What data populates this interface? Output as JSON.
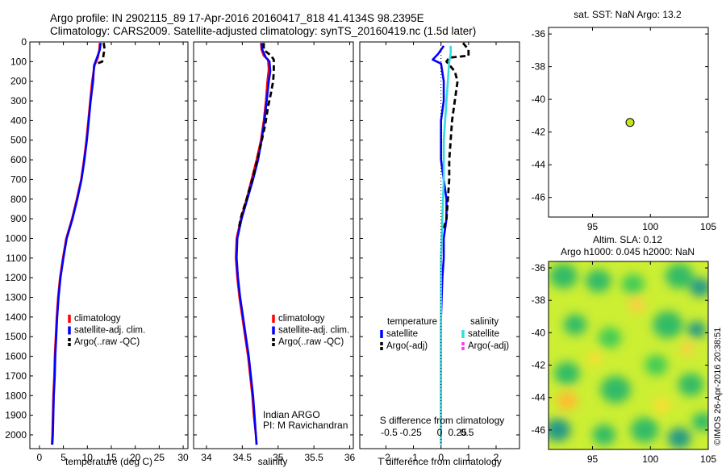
{
  "header": {
    "title_line1": "Argo profile: IN 2902115_89 17-Apr-2016 20160417_818 41.4134S 98.2395E",
    "title_line2": "Climatology: CARS2009. Satellite-adjusted climatology: synTS_20160419.nc (1.5d later)"
  },
  "colors": {
    "climatology": "#ff0000",
    "satellite": "#0000ff",
    "argo": "#000000",
    "sal_satellite": "#33dddd",
    "sal_argo": "#ff33ff",
    "float_marker": "#bfe61a"
  },
  "credit": {
    "institution": "Indian ARGO",
    "pi": "PI: M Ravichandran"
  },
  "stamp": "©IMOS 26-Apr-2016 20:38:51",
  "chart_data": [
    {
      "id": "temperature",
      "type": "line",
      "xlabel": "temperature (deg C)",
      "ylabel": "",
      "xlim": [
        -2,
        31
      ],
      "ylim": [
        2070,
        0
      ],
      "xticks": [
        0,
        5,
        10,
        15,
        20,
        25,
        30
      ],
      "yticks": [
        0,
        100,
        200,
        300,
        400,
        500,
        600,
        700,
        800,
        900,
        1000,
        1100,
        1200,
        1300,
        1400,
        1500,
        1600,
        1700,
        1800,
        1900,
        2000
      ],
      "legend": [
        "climatology",
        "satellite-adj. clim.",
        "Argo(..raw -QC)"
      ],
      "legend_position": "bottom-right",
      "series": [
        {
          "name": "climatology",
          "style": "solid",
          "points": [
            [
              12.6,
              5
            ],
            [
              12.5,
              40
            ],
            [
              12.2,
              80
            ],
            [
              11.5,
              120
            ],
            [
              11.0,
              200
            ],
            [
              10.6,
              300
            ],
            [
              10.2,
              400
            ],
            [
              9.8,
              500
            ],
            [
              9.3,
              600
            ],
            [
              8.7,
              700
            ],
            [
              7.8,
              800
            ],
            [
              6.8,
              900
            ],
            [
              5.6,
              1000
            ],
            [
              4.9,
              1100
            ],
            [
              4.3,
              1200
            ],
            [
              3.9,
              1300
            ],
            [
              3.6,
              1400
            ],
            [
              3.4,
              1500
            ],
            [
              3.2,
              1600
            ],
            [
              3.1,
              1700
            ],
            [
              2.9,
              1800
            ],
            [
              2.8,
              1900
            ],
            [
              2.7,
              2000
            ],
            [
              2.6,
              2050
            ]
          ]
        },
        {
          "name": "satellite-adj. clim.",
          "style": "solid",
          "points": [
            [
              12.8,
              5
            ],
            [
              12.6,
              40
            ],
            [
              12.0,
              80
            ],
            [
              11.4,
              120
            ],
            [
              11.2,
              200
            ],
            [
              10.7,
              300
            ],
            [
              10.3,
              400
            ],
            [
              9.9,
              500
            ],
            [
              9.4,
              600
            ],
            [
              8.8,
              700
            ],
            [
              7.9,
              800
            ],
            [
              6.9,
              900
            ],
            [
              5.7,
              1000
            ],
            [
              5.0,
              1100
            ],
            [
              4.4,
              1200
            ],
            [
              4.0,
              1300
            ],
            [
              3.7,
              1400
            ],
            [
              3.5,
              1500
            ],
            [
              3.3,
              1600
            ],
            [
              3.2,
              1700
            ],
            [
              3.0,
              1800
            ],
            [
              2.9,
              1900
            ],
            [
              2.8,
              2000
            ],
            [
              2.7,
              2050
            ]
          ]
        },
        {
          "name": "Argo(..raw -QC)",
          "style": "dashed",
          "points": [
            [
              13.4,
              5
            ],
            [
              13.5,
              20
            ],
            [
              13.6,
              40
            ],
            [
              13.4,
              60
            ],
            [
              13.3,
              80
            ],
            [
              13.1,
              100
            ],
            [
              12.0,
              110
            ]
          ]
        }
      ]
    },
    {
      "id": "salinity",
      "type": "line",
      "xlabel": "salinity",
      "ylabel": "",
      "xlim": [
        33.82,
        36.05
      ],
      "ylim": [
        2070,
        0
      ],
      "xticks": [
        34,
        34.5,
        35,
        35.5,
        36
      ],
      "xtick_labels": [
        "34",
        "34.5",
        "35",
        "35.5",
        "36"
      ],
      "yticks": [
        0,
        100,
        200,
        300,
        400,
        500,
        600,
        700,
        800,
        900,
        1000,
        1100,
        1200,
        1300,
        1400,
        1500,
        1600,
        1700,
        1800,
        1900,
        2000
      ],
      "legend": [
        "climatology",
        "satellite-adj. clim.",
        "Argo(..raw -QC)"
      ],
      "legend_position": "bottom-right",
      "series": [
        {
          "name": "climatology",
          "style": "solid",
          "points": [
            [
              34.76,
              5
            ],
            [
              34.77,
              40
            ],
            [
              34.8,
              70
            ],
            [
              34.86,
              90
            ],
            [
              34.87,
              140
            ],
            [
              34.85,
              200
            ],
            [
              34.83,
              300
            ],
            [
              34.8,
              400
            ],
            [
              34.76,
              500
            ],
            [
              34.7,
              600
            ],
            [
              34.63,
              700
            ],
            [
              34.56,
              800
            ],
            [
              34.48,
              900
            ],
            [
              34.42,
              1000
            ],
            [
              34.41,
              1100
            ],
            [
              34.43,
              1200
            ],
            [
              34.46,
              1300
            ],
            [
              34.5,
              1400
            ],
            [
              34.54,
              1500
            ],
            [
              34.58,
              1600
            ],
            [
              34.61,
              1700
            ],
            [
              34.64,
              1800
            ],
            [
              34.66,
              1900
            ],
            [
              34.69,
              2000
            ],
            [
              34.7,
              2050
            ]
          ]
        },
        {
          "name": "satellite-adj. clim.",
          "style": "solid",
          "points": [
            [
              34.77,
              5
            ],
            [
              34.78,
              40
            ],
            [
              34.83,
              80
            ],
            [
              34.88,
              100
            ],
            [
              34.89,
              150
            ],
            [
              34.87,
              200
            ],
            [
              34.84,
              300
            ],
            [
              34.81,
              400
            ],
            [
              34.77,
              500
            ],
            [
              34.72,
              600
            ],
            [
              34.65,
              700
            ],
            [
              34.57,
              800
            ],
            [
              34.49,
              900
            ],
            [
              34.43,
              1000
            ],
            [
              34.42,
              1100
            ],
            [
              34.44,
              1200
            ],
            [
              34.47,
              1300
            ],
            [
              34.51,
              1400
            ],
            [
              34.55,
              1500
            ],
            [
              34.59,
              1600
            ],
            [
              34.62,
              1700
            ],
            [
              34.65,
              1800
            ],
            [
              34.67,
              1900
            ],
            [
              34.69,
              2000
            ],
            [
              34.7,
              2050
            ]
          ]
        },
        {
          "name": "Argo(..raw -QC)",
          "style": "dashed",
          "points": [
            [
              34.8,
              5
            ],
            [
              34.8,
              40
            ],
            [
              34.9,
              70
            ],
            [
              34.94,
              90
            ],
            [
              34.94,
              150
            ],
            [
              34.93,
              200
            ],
            [
              34.9,
              260
            ],
            [
              34.86,
              330
            ],
            [
              34.82,
              420
            ],
            [
              34.76,
              520
            ],
            [
              34.71,
              600
            ],
            [
              34.64,
              700
            ],
            [
              34.56,
              800
            ],
            [
              34.49,
              880
            ],
            [
              34.45,
              950
            ]
          ]
        }
      ]
    },
    {
      "id": "difference",
      "type": "line",
      "xlabel": "T difference from climatology",
      "xlabel_top": "S difference from climatology",
      "xlim": [
        -2.95,
        2.85
      ],
      "ylim": [
        2070,
        0
      ],
      "xticks": [
        -2,
        -1,
        0,
        1,
        2
      ],
      "xtick_labels": [
        "-2",
        "-1",
        "0",
        "1",
        "2"
      ],
      "xticks_sal": [
        -1.88,
        -1.1,
        -0.05,
        0.6,
        0.95
      ],
      "xtick_labels_sal": [
        "-0.5",
        "-0.25",
        "0",
        "0.25",
        "0.5"
      ],
      "yticks": [
        0,
        100,
        200,
        300,
        400,
        500,
        600,
        700,
        800,
        900,
        1000,
        1100,
        1200,
        1300,
        1400,
        1500,
        1600,
        1700,
        1800,
        1900,
        2000
      ],
      "legend_headers": [
        "temperature",
        "salinity"
      ],
      "legend": [
        "satellite",
        "Argo(-adj)",
        "satellite",
        "Argo(-adj)"
      ],
      "legend_position": "bottom",
      "series": [
        {
          "name": "temperature satellite",
          "style": "solid",
          "points": [
            [
              0.1,
              20
            ],
            [
              -0.1,
              60
            ],
            [
              -0.3,
              90
            ],
            [
              0.0,
              110
            ],
            [
              0.1,
              200
            ],
            [
              0.1,
              300
            ],
            [
              0.0,
              400
            ],
            [
              0.0,
              500
            ],
            [
              0.0,
              600
            ],
            [
              0.1,
              700
            ],
            [
              0.2,
              800
            ],
            [
              0.2,
              900
            ],
            [
              0.1,
              1000
            ],
            [
              0.1,
              1100
            ],
            [
              0.05,
              1200
            ],
            [
              0.0,
              1400
            ],
            [
              0.0,
              1600
            ],
            [
              0.0,
              1800
            ],
            [
              0.0,
              2050
            ]
          ]
        },
        {
          "name": "temperature Argo(-adj)",
          "style": "dashed",
          "points": [
            [
              0.8,
              5
            ],
            [
              1.0,
              40
            ],
            [
              1.0,
              70
            ],
            [
              0.3,
              80
            ],
            [
              0.2,
              100
            ],
            [
              0.5,
              150
            ],
            [
              0.6,
              200
            ],
            [
              0.5,
              300
            ],
            [
              0.4,
              400
            ],
            [
              0.35,
              500
            ],
            [
              0.3,
              600
            ],
            [
              0.3,
              700
            ],
            [
              0.25,
              800
            ],
            [
              0.2,
              900
            ],
            [
              0.1,
              950
            ]
          ]
        },
        {
          "name": "salinity satellite",
          "style": "solid",
          "points": [
            [
              0.35,
              20
            ],
            [
              0.35,
              60
            ],
            [
              0.3,
              100
            ],
            [
              0.25,
              200
            ],
            [
              0.2,
              300
            ],
            [
              0.15,
              400
            ],
            [
              0.1,
              500
            ],
            [
              0.1,
              700
            ],
            [
              0.05,
              900
            ],
            [
              0.0,
              1100
            ],
            [
              0.0,
              1400
            ],
            [
              0.0,
              1700
            ],
            [
              0.0,
              2050
            ]
          ]
        },
        {
          "name": "zero line",
          "style": "dotted",
          "points": [
            [
              0,
              0
            ],
            [
              0,
              2070
            ]
          ]
        }
      ]
    },
    {
      "id": "float-position",
      "type": "scatter",
      "title": "sat. SST: NaN Argo: 13.2",
      "xlim": [
        91.2,
        105
      ],
      "ylim": [
        -47.2,
        -35.6
      ],
      "xticks": [
        95,
        100,
        105
      ],
      "yticks": [
        -36,
        -38,
        -40,
        -42,
        -44,
        -46
      ],
      "points": [
        [
          98.2395,
          -41.4134
        ]
      ]
    },
    {
      "id": "altimetry",
      "type": "heatmap",
      "title_line1": "Altim. SLA: 0.12",
      "title_line2": "Argo h1000: 0.045 h2000: NaN",
      "xlim": [
        91.2,
        105
      ],
      "ylim": [
        -47.2,
        -35.6
      ],
      "xticks": [
        95,
        100,
        105
      ],
      "yticks": [
        -36,
        -38,
        -40,
        -42,
        -44,
        -46
      ],
      "background": "#ccee33",
      "blobs": [
        {
          "lon": 92.5,
          "lat": -36.5,
          "r": 1.2,
          "color": "#33bb66"
        },
        {
          "lon": 95.5,
          "lat": -36.8,
          "r": 1.1,
          "color": "#33bb66"
        },
        {
          "lon": 98.5,
          "lat": -37.0,
          "r": 1.0,
          "color": "#44cc55"
        },
        {
          "lon": 102.5,
          "lat": -36.5,
          "r": 1.2,
          "color": "#33bb66"
        },
        {
          "lon": 104.3,
          "lat": -37.2,
          "r": 0.9,
          "color": "#229988"
        },
        {
          "lon": 93.5,
          "lat": -39.5,
          "r": 1.0,
          "color": "#33bb66"
        },
        {
          "lon": 96.5,
          "lat": -40.3,
          "r": 1.0,
          "color": "#44cc55"
        },
        {
          "lon": 101.5,
          "lat": -39.5,
          "r": 1.3,
          "color": "#33bb66"
        },
        {
          "lon": 104.0,
          "lat": -39.8,
          "r": 0.8,
          "color": "#229988"
        },
        {
          "lon": 92.8,
          "lat": -42.5,
          "r": 1.1,
          "color": "#33bb66"
        },
        {
          "lon": 97.0,
          "lat": -43.5,
          "r": 1.3,
          "color": "#33bb66"
        },
        {
          "lon": 100.5,
          "lat": -42.0,
          "r": 1.0,
          "color": "#44cc55"
        },
        {
          "lon": 103.5,
          "lat": -43.2,
          "r": 1.1,
          "color": "#33bb66"
        },
        {
          "lon": 92.0,
          "lat": -46.0,
          "r": 1.1,
          "color": "#229988"
        },
        {
          "lon": 96.0,
          "lat": -46.3,
          "r": 1.0,
          "color": "#33bb66"
        },
        {
          "lon": 99.5,
          "lat": -46.0,
          "r": 1.2,
          "color": "#33bb66"
        },
        {
          "lon": 102.5,
          "lat": -46.5,
          "r": 1.0,
          "color": "#229988"
        },
        {
          "lon": 104.5,
          "lat": -45.5,
          "r": 0.9,
          "color": "#33bb66"
        },
        {
          "lon": 98.8,
          "lat": -38.3,
          "r": 0.7,
          "color": "#ffcc44"
        },
        {
          "lon": 92.8,
          "lat": -44.2,
          "r": 0.9,
          "color": "#ffbb33"
        },
        {
          "lon": 95.2,
          "lat": -41.6,
          "r": 0.6,
          "color": "#ffdd33"
        },
        {
          "lon": 101.0,
          "lat": -44.5,
          "r": 0.7,
          "color": "#ffdd33"
        },
        {
          "lon": 103.2,
          "lat": -41.0,
          "r": 0.6,
          "color": "#ffcc44"
        }
      ]
    }
  ]
}
